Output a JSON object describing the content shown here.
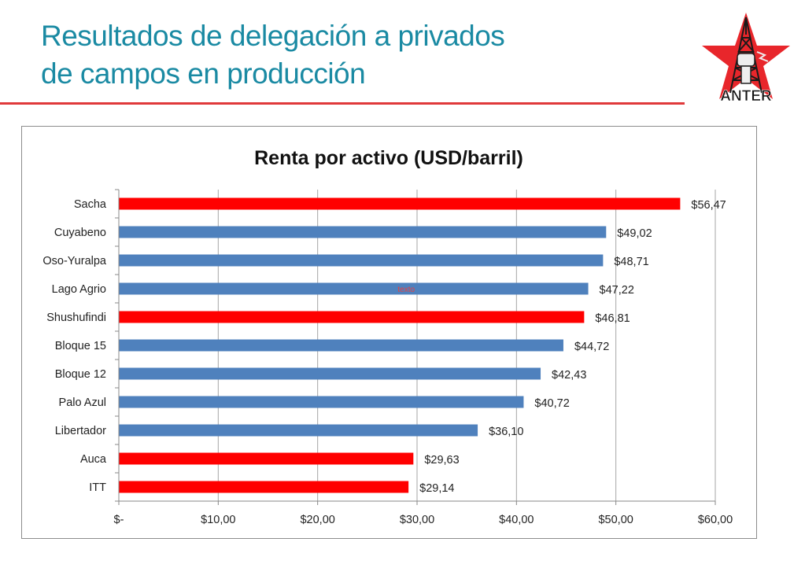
{
  "slide": {
    "title_line1": "Resultados de delegación a privados",
    "title_line2": "de campos en producción",
    "logo_text": "ANTER",
    "accent_color": "#e0393a",
    "title_color": "#1a8aa3"
  },
  "chart_data": {
    "type": "bar",
    "orientation": "horizontal",
    "title": "Renta por activo (USD/barril)",
    "xlabel": "",
    "ylabel": "",
    "categories": [
      "Sacha",
      "Cuyabeno",
      "Oso-Yuralpa",
      "Lago Agrio",
      "Shushufindi",
      "Bloque 15",
      "Bloque 12",
      "Palo Azul",
      "Libertador",
      "Auca",
      "ITT"
    ],
    "values": [
      56.47,
      49.02,
      48.71,
      47.22,
      46.81,
      44.72,
      42.43,
      40.72,
      36.1,
      29.63,
      29.14
    ],
    "data_labels": [
      "$56,47",
      "$49,02",
      "$48,71",
      "$47,22",
      "$46,81",
      "$44,72",
      "$42,43",
      "$40,72",
      "$36,10",
      "$29,63",
      "$29,14"
    ],
    "highlight": [
      true,
      false,
      false,
      false,
      true,
      false,
      false,
      false,
      false,
      true,
      true
    ],
    "colors": {
      "highlight": "#ff0000",
      "default": "#4f81bd"
    },
    "xlim": [
      0,
      60
    ],
    "xticks": [
      0,
      10,
      20,
      30,
      40,
      50,
      60
    ],
    "xtick_labels": [
      "$-",
      "$10,00",
      "$20,00",
      "$30,00",
      "$40,00",
      "$50,00",
      "$60,00"
    ],
    "grid": true,
    "legend": "none",
    "annotation": {
      "text": "texto",
      "category": "Lago Agrio",
      "x": 29
    }
  }
}
